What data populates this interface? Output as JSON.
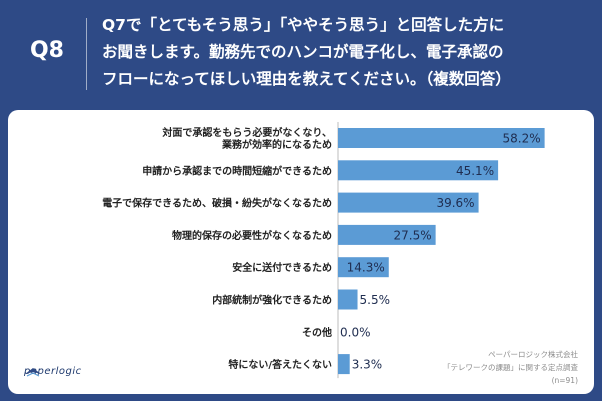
{
  "header": {
    "qnum": "Q8",
    "question_lines": [
      "Q7で「とてもそう思う」「ややそう思う」と回答した方に",
      "お聞きします。勤務先でのハンコが電子化し、電子承認の",
      "フローになってほしい理由を教えてください。（複数回答）"
    ]
  },
  "chart_data": {
    "type": "bar",
    "orientation": "horizontal",
    "categories": [
      [
        "対面で承認をもらう必要がなくなり、",
        "業務が効率的になるため"
      ],
      [
        "申請から承認までの時間短縮ができるため"
      ],
      [
        "電子で保存できるため、破損・紛失がなくなるため"
      ],
      [
        "物理的保存の必要性がなくなるため"
      ],
      [
        "安全に送付できるため"
      ],
      [
        "内部統制が強化できるため"
      ],
      [
        "その他"
      ],
      [
        "特にない/答えたくない"
      ]
    ],
    "values": [
      58.2,
      45.1,
      39.6,
      27.5,
      14.3,
      5.5,
      0.0,
      3.3
    ],
    "value_labels": [
      "58.2%",
      "45.1%",
      "39.6%",
      "27.5%",
      "14.3%",
      "5.5%",
      "0.0%",
      "3.3%"
    ],
    "unit": "%",
    "xlim": [
      0,
      60
    ],
    "bar_color": "#5b9bd5",
    "label_color": "#1f2d50"
  },
  "logo": {
    "text": "paperlogic"
  },
  "source": {
    "lines": [
      "ペーパーロジック株式会社",
      "「テレワークの課題」に関する定点調査",
      "(n=91)"
    ]
  },
  "colors": {
    "background": "#2e4a86",
    "panel": "#ffffff"
  }
}
